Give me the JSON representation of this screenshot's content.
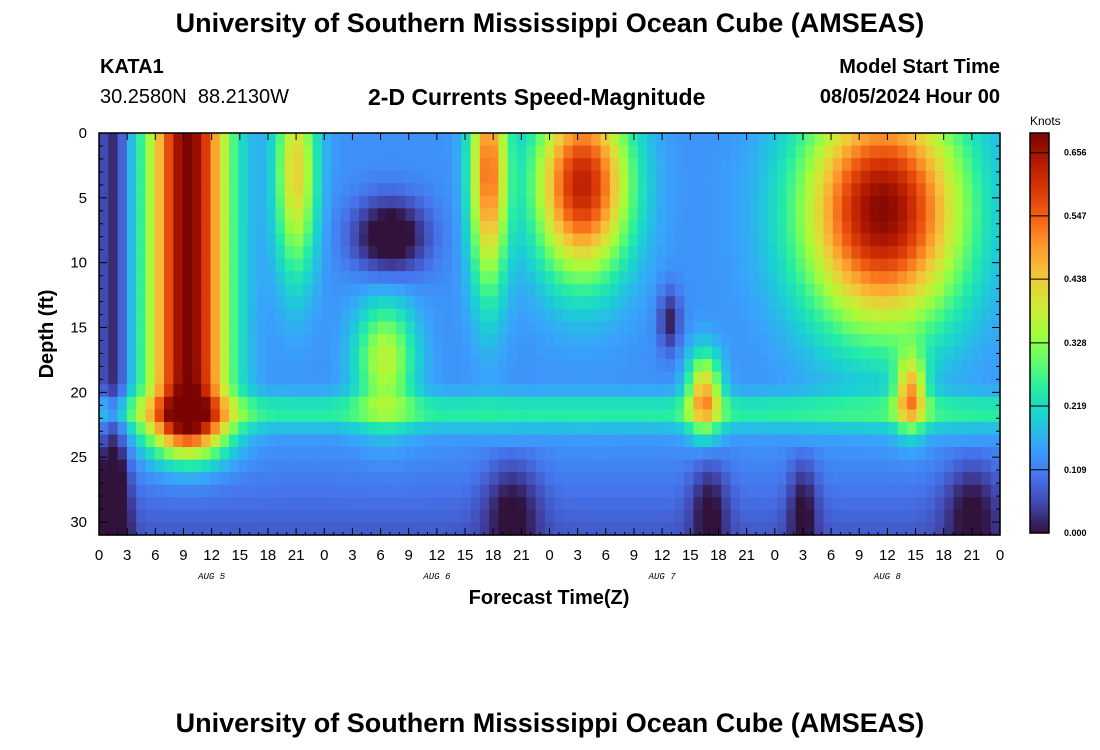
{
  "header": {
    "title": "University of Southern Mississippi Ocean Cube (AMSEAS)",
    "station": "KATA1",
    "coords": "30.2580N  88.2130W",
    "subtitle": "2-D Currents Speed-Magnitude",
    "model_start_label": "Model Start Time",
    "model_start_value": "08/05/2024 Hour 00"
  },
  "footer": {
    "title": "University of Southern Mississippi Ocean Cube (AMSEAS)"
  },
  "colors": {
    "colormap": [
      "#30123b",
      "#4145ab",
      "#4675ed",
      "#39a2fc",
      "#1bcfd4",
      "#24eca6",
      "#61fc6c",
      "#a4fc3b",
      "#d1e834",
      "#f3c63a",
      "#fe9b2d",
      "#f36315",
      "#d93806",
      "#b11901",
      "#7a0402"
    ]
  },
  "chart_data": {
    "type": "heatmap",
    "title": "2-D Currents Speed-Magnitude",
    "xlabel": "Forecast Time(Z)",
    "ylabel": "Depth (ft)",
    "x_tick_labels": [
      "0",
      "3",
      "6",
      "9",
      "12",
      "15",
      "18",
      "21",
      "0",
      "3",
      "6",
      "9",
      "12",
      "15",
      "18",
      "21",
      "0",
      "3",
      "6",
      "9",
      "12",
      "15",
      "18",
      "21",
      "0",
      "3",
      "6",
      "9",
      "12",
      "15",
      "18",
      "21",
      "0"
    ],
    "x_range_hours": [
      0,
      96
    ],
    "day_labels": [
      {
        "label": "AUG 5",
        "hour": 12
      },
      {
        "label": "AUG 6",
        "hour": 36
      },
      {
        "label": "AUG 7",
        "hour": 60
      },
      {
        "label": "AUG 8",
        "hour": 84
      }
    ],
    "y_ticks": [
      0,
      5,
      10,
      15,
      20,
      25,
      30
    ],
    "y_tick_labels": [
      "0",
      "5",
      "10",
      "15",
      "20",
      "25",
      "30"
    ],
    "y_range_ft": [
      0,
      31
    ],
    "y_inverted": true,
    "colorbar": {
      "units": "Knots",
      "min": 0.0,
      "max": 0.69,
      "tick_values": [
        0.0,
        0.109,
        0.219,
        0.328,
        0.438,
        0.547,
        0.656
      ],
      "tick_labels": [
        "0.000",
        "0.109",
        "0.219",
        "0.328",
        "0.438",
        "0.547",
        "0.656"
      ]
    },
    "approx_features_knots": [
      {
        "hour": 10,
        "depth_ft": 10,
        "speed": 0.65
      },
      {
        "hour": 30.5,
        "depth_ft": 17,
        "speed": 0.37
      },
      {
        "hour": 52,
        "depth_ft": 5,
        "speed": 0.66
      },
      {
        "hour": 64.5,
        "depth_ft": 20,
        "speed": 0.45
      },
      {
        "hour": 84,
        "depth_ft": 6,
        "speed": 0.67
      },
      {
        "hour": 86.5,
        "depth_ft": 20,
        "speed": 0.44
      },
      {
        "hour": 60.8,
        "depth_ft": 15,
        "speed": 0.05
      },
      {
        "hour": 44,
        "depth_ft": 29,
        "speed": 0.02
      },
      {
        "hour": 93,
        "depth_ft": 29,
        "speed": 0.02
      }
    ]
  }
}
